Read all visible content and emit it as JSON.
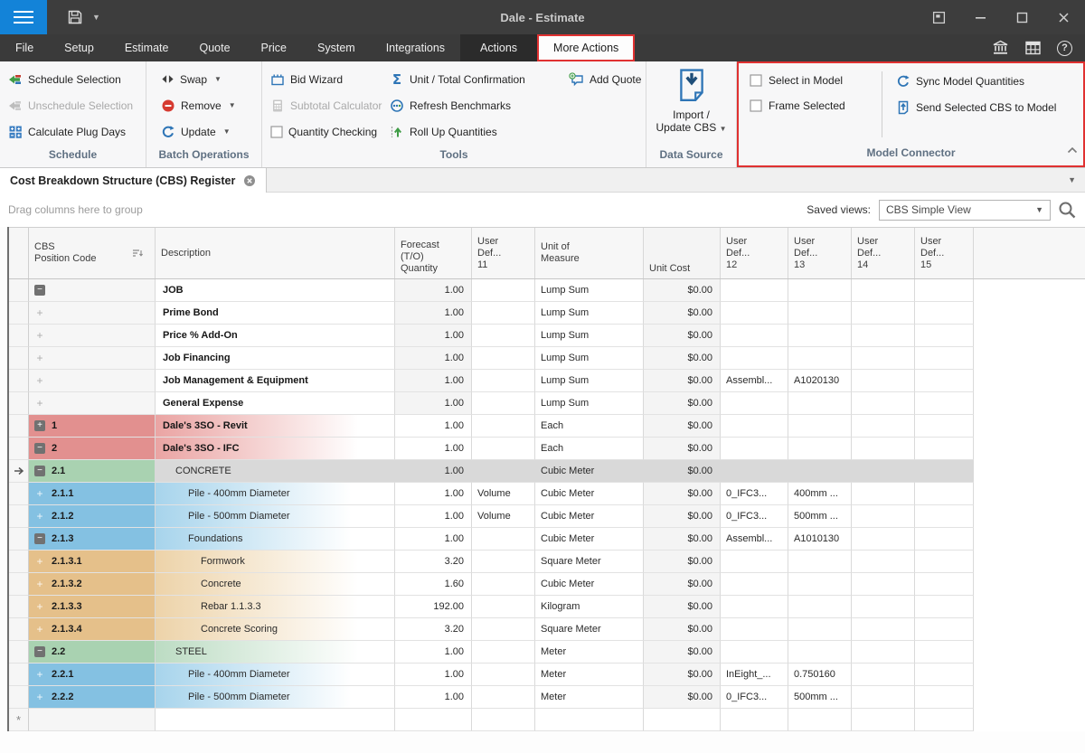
{
  "window": {
    "title": "Dale - Estimate"
  },
  "menu": {
    "items": [
      {
        "label": "File",
        "state": "normal"
      },
      {
        "label": "Setup",
        "state": "normal"
      },
      {
        "label": "Estimate",
        "state": "normal"
      },
      {
        "label": "Quote",
        "state": "normal"
      },
      {
        "label": "Price",
        "state": "normal"
      },
      {
        "label": "System",
        "state": "normal"
      },
      {
        "label": "Integrations",
        "state": "normal"
      },
      {
        "label": "Actions",
        "state": "pressed"
      },
      {
        "label": "More Actions",
        "state": "selected"
      }
    ]
  },
  "ribbon": {
    "schedule": {
      "label": "Schedule",
      "schedule_selection": "Schedule Selection",
      "unschedule_selection": "Unschedule Selection",
      "calculate_plug_days": "Calculate Plug Days"
    },
    "batch": {
      "label": "Batch Operations",
      "swap": "Swap",
      "remove": "Remove",
      "update": "Update"
    },
    "tools": {
      "label": "Tools",
      "bid_wizard": "Bid Wizard",
      "subtotal_calculator": "Subtotal Calculator",
      "quantity_checking": "Quantity Checking",
      "unit_total_confirmation": "Unit / Total Confirmation",
      "refresh_benchmarks": "Refresh Benchmarks",
      "roll_up_quantities": "Roll Up Quantities",
      "add_quote": "Add Quote"
    },
    "data_source": {
      "label": "Data Source",
      "import_line1": "Import /",
      "import_line2": "Update CBS"
    },
    "model_connector": {
      "label": "Model Connector",
      "select_in_model": "Select in Model",
      "frame_selected": "Frame Selected",
      "sync_model_quantities": "Sync Model Quantities",
      "send_selected_cbs": "Send Selected CBS to Model"
    }
  },
  "tabbar": {
    "active_tab": "Cost Breakdown Structure (CBS) Register"
  },
  "toolbar": {
    "group_hint": "Drag columns here to group",
    "saved_views_label": "Saved views:",
    "saved_views_value": "CBS Simple View"
  },
  "grid": {
    "columns": [
      {
        "id": "ind",
        "lines": []
      },
      {
        "id": "code",
        "lines": [
          "CBS",
          "Position Code"
        ],
        "sort": true
      },
      {
        "id": "desc",
        "lines": [
          "Description"
        ]
      },
      {
        "id": "qty",
        "lines": [
          "Forecast",
          "(T/O)",
          "Quantity"
        ]
      },
      {
        "id": "udf11",
        "lines": [
          "User",
          "Def...",
          "11"
        ]
      },
      {
        "id": "uom",
        "lines": [
          "Unit of",
          "Measure"
        ]
      },
      {
        "id": "cost",
        "lines": [
          "Unit Cost"
        ]
      },
      {
        "id": "udf12",
        "lines": [
          "User",
          "Def...",
          "12"
        ]
      },
      {
        "id": "udf13",
        "lines": [
          "User",
          "Def...",
          "13"
        ]
      },
      {
        "id": "udf14",
        "lines": [
          "User",
          "Def...",
          "14"
        ]
      },
      {
        "id": "udf15",
        "lines": [
          "User",
          "Def...",
          "15"
        ]
      }
    ],
    "rows": [
      {
        "ind": "",
        "exp": "minus",
        "code": "",
        "desc": "JOB",
        "lvl": 0,
        "bold": true,
        "tone": "",
        "sel": false,
        "qty": "1.00",
        "udf11": "",
        "uom": "Lump Sum",
        "cost": "$0.00",
        "udf12": "",
        "udf13": "",
        "udf14": "",
        "udf15": ""
      },
      {
        "ind": "",
        "exp": "plus",
        "code": "",
        "desc": "Prime Bond",
        "lvl": 0,
        "bold": true,
        "tone": "",
        "sel": false,
        "qty": "1.00",
        "udf11": "",
        "uom": "Lump Sum",
        "cost": "$0.00",
        "udf12": "",
        "udf13": "",
        "udf14": "",
        "udf15": ""
      },
      {
        "ind": "",
        "exp": "plus",
        "code": "",
        "desc": "Price % Add-On",
        "lvl": 0,
        "bold": true,
        "tone": "",
        "sel": false,
        "qty": "1.00",
        "udf11": "",
        "uom": "Lump Sum",
        "cost": "$0.00",
        "udf12": "",
        "udf13": "",
        "udf14": "",
        "udf15": ""
      },
      {
        "ind": "",
        "exp": "plus",
        "code": "",
        "desc": "Job Financing",
        "lvl": 0,
        "bold": true,
        "tone": "",
        "sel": false,
        "qty": "1.00",
        "udf11": "",
        "uom": "Lump Sum",
        "cost": "$0.00",
        "udf12": "",
        "udf13": "",
        "udf14": "",
        "udf15": ""
      },
      {
        "ind": "",
        "exp": "plus",
        "code": "",
        "desc": "Job Management & Equipment",
        "lvl": 0,
        "bold": true,
        "tone": "",
        "sel": false,
        "qty": "1.00",
        "udf11": "",
        "uom": "Lump Sum",
        "cost": "$0.00",
        "udf12": "Assembl...",
        "udf13": "A1020130",
        "udf14": "",
        "udf15": ""
      },
      {
        "ind": "",
        "exp": "plus",
        "code": "",
        "desc": "General Expense",
        "lvl": 0,
        "bold": true,
        "tone": "",
        "sel": false,
        "qty": "1.00",
        "udf11": "",
        "uom": "Lump Sum",
        "cost": "$0.00",
        "udf12": "",
        "udf13": "",
        "udf14": "",
        "udf15": ""
      },
      {
        "ind": "",
        "exp": "plusbox",
        "code": "1",
        "desc": "Dale's 3SO - Revit",
        "lvl": 0,
        "bold": true,
        "tone": "red",
        "sel": false,
        "qty": "1.00",
        "udf11": "",
        "uom": "Each",
        "cost": "$0.00",
        "udf12": "",
        "udf13": "",
        "udf14": "",
        "udf15": ""
      },
      {
        "ind": "",
        "exp": "minus",
        "code": "2",
        "desc": "Dale's 3SO - IFC",
        "lvl": 0,
        "bold": true,
        "tone": "red",
        "sel": false,
        "qty": "1.00",
        "udf11": "",
        "uom": "Each",
        "cost": "$0.00",
        "udf12": "",
        "udf13": "",
        "udf14": "",
        "udf15": ""
      },
      {
        "ind": "arrow",
        "exp": "minus",
        "code": "2.1",
        "desc": "CONCRETE",
        "lvl": 1,
        "bold": false,
        "tone": "green",
        "sel": true,
        "qty": "1.00",
        "udf11": "",
        "uom": "Cubic Meter",
        "cost": "$0.00",
        "udf12": "",
        "udf13": "",
        "udf14": "",
        "udf15": ""
      },
      {
        "ind": "",
        "exp": "plus",
        "code": "2.1.1",
        "desc": "Pile - 400mm Diameter",
        "lvl": 2,
        "bold": false,
        "tone": "blue",
        "sel": false,
        "qty": "1.00",
        "udf11": "Volume",
        "uom": "Cubic Meter",
        "cost": "$0.00",
        "udf12": "0_IFC3...",
        "udf13": "400mm ...",
        "udf14": "",
        "udf15": ""
      },
      {
        "ind": "",
        "exp": "plus",
        "code": "2.1.2",
        "desc": "Pile - 500mm Diameter",
        "lvl": 2,
        "bold": false,
        "tone": "blue",
        "sel": false,
        "qty": "1.00",
        "udf11": "Volume",
        "uom": "Cubic Meter",
        "cost": "$0.00",
        "udf12": "0_IFC3...",
        "udf13": "500mm ...",
        "udf14": "",
        "udf15": ""
      },
      {
        "ind": "",
        "exp": "minus",
        "code": "2.1.3",
        "desc": "Foundations",
        "lvl": 2,
        "bold": false,
        "tone": "blue",
        "sel": false,
        "qty": "1.00",
        "udf11": "",
        "uom": "Cubic Meter",
        "cost": "$0.00",
        "udf12": "Assembl...",
        "udf13": "A1010130",
        "udf14": "",
        "udf15": ""
      },
      {
        "ind": "",
        "exp": "plus",
        "code": "2.1.3.1",
        "desc": "Formwork",
        "lvl": 3,
        "bold": false,
        "tone": "tan",
        "sel": false,
        "qty": "3.20",
        "udf11": "",
        "uom": "Square Meter",
        "cost": "$0.00",
        "udf12": "",
        "udf13": "",
        "udf14": "",
        "udf15": ""
      },
      {
        "ind": "",
        "exp": "plus",
        "code": "2.1.3.2",
        "desc": "Concrete",
        "lvl": 3,
        "bold": false,
        "tone": "tan",
        "sel": false,
        "qty": "1.60",
        "udf11": "",
        "uom": "Cubic Meter",
        "cost": "$0.00",
        "udf12": "",
        "udf13": "",
        "udf14": "",
        "udf15": ""
      },
      {
        "ind": "",
        "exp": "plus",
        "code": "2.1.3.3",
        "desc": "Rebar 1.1.3.3",
        "lvl": 3,
        "bold": false,
        "tone": "tan",
        "sel": false,
        "qty": "192.00",
        "udf11": "",
        "uom": "Kilogram",
        "cost": "$0.00",
        "udf12": "",
        "udf13": "",
        "udf14": "",
        "udf15": ""
      },
      {
        "ind": "",
        "exp": "plus",
        "code": "2.1.3.4",
        "desc": "Concrete Scoring",
        "lvl": 3,
        "bold": false,
        "tone": "tan",
        "sel": false,
        "qty": "3.20",
        "udf11": "",
        "uom": "Square Meter",
        "cost": "$0.00",
        "udf12": "",
        "udf13": "",
        "udf14": "",
        "udf15": ""
      },
      {
        "ind": "",
        "exp": "minus",
        "code": "2.2",
        "desc": "STEEL",
        "lvl": 1,
        "bold": false,
        "tone": "green",
        "sel": false,
        "qty": "1.00",
        "udf11": "",
        "uom": "Meter",
        "cost": "$0.00",
        "udf12": "",
        "udf13": "",
        "udf14": "",
        "udf15": ""
      },
      {
        "ind": "",
        "exp": "plus",
        "code": "2.2.1",
        "desc": "Pile - 400mm Diameter",
        "lvl": 2,
        "bold": false,
        "tone": "blue",
        "sel": false,
        "qty": "1.00",
        "udf11": "",
        "uom": "Meter",
        "cost": "$0.00",
        "udf12": "InEight_...",
        "udf13": "0.750160",
        "udf14": "",
        "udf15": ""
      },
      {
        "ind": "",
        "exp": "plus",
        "code": "2.2.2",
        "desc": "Pile - 500mm Diameter",
        "lvl": 2,
        "bold": false,
        "tone": "blue",
        "sel": false,
        "qty": "1.00",
        "udf11": "",
        "uom": "Meter",
        "cost": "$0.00",
        "udf12": "0_IFC3...",
        "udf13": "500mm ...",
        "udf14": "",
        "udf15": ""
      },
      {
        "ind": "star",
        "exp": "none",
        "code": "",
        "desc": "",
        "lvl": 0,
        "bold": false,
        "tone": "",
        "sel": false,
        "blank": true,
        "qty": "",
        "udf11": "",
        "uom": "",
        "cost": "",
        "udf12": "",
        "udf13": "",
        "udf14": "",
        "udf15": ""
      }
    ]
  },
  "colors": {
    "accent_blue": "#2e75b6",
    "annotation_red": "#e03131",
    "hamburger_blue": "#1383d8",
    "row_red": "#e2908f",
    "row_green": "#a9d2b1",
    "row_blue": "#84c1e2",
    "row_tan": "#e5c08a"
  },
  "icons": {
    "hamburger": "app-menu",
    "save": "floppy-disk",
    "bank": "library-building",
    "table": "grid-table",
    "help": "question-mark",
    "magnifier": "search",
    "tab_close": "circle-x",
    "selected_row": "right-arrow",
    "new_row": "asterisk"
  }
}
